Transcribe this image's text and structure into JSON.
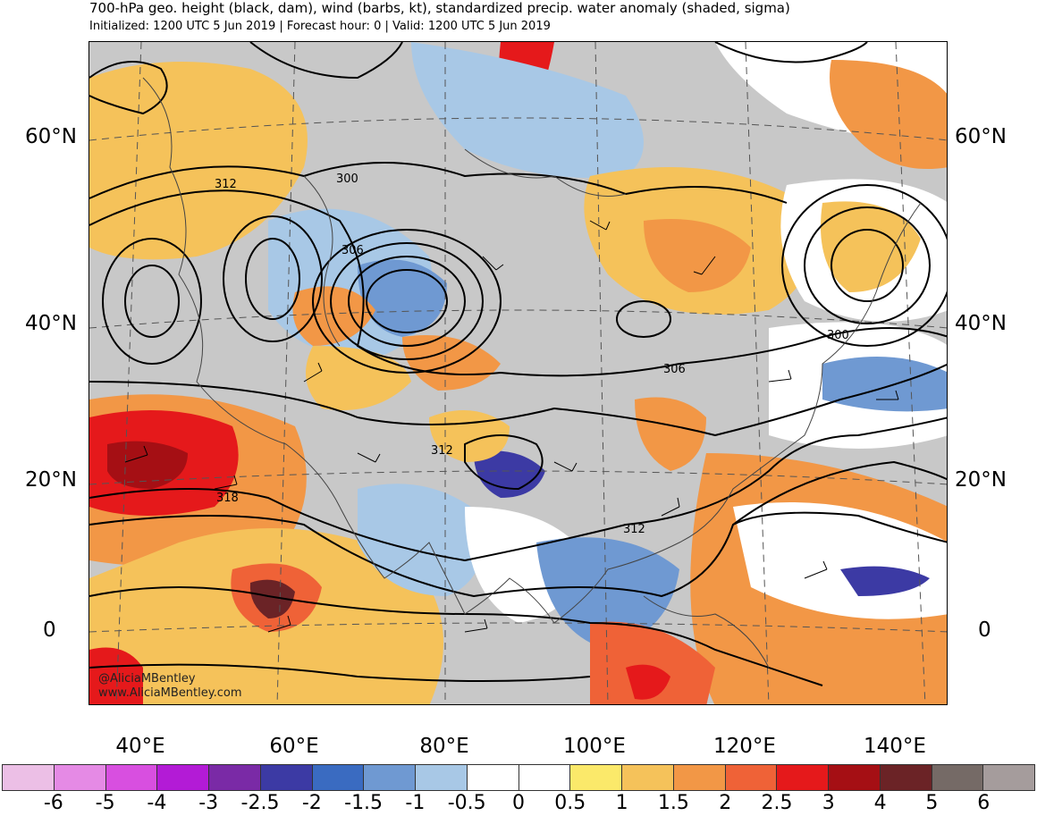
{
  "title": "700-hPa geo. height (black, dam), wind (barbs, kt), standardized precip. water anomaly (shaded, sigma)",
  "subtitle": "Initialized: 1200 UTC 5 Jun 2019 | Forecast hour: 0 | Valid: 1200 UTC 5 Jun 2019",
  "map": {
    "lat_labels": [
      "60°N",
      "40°N",
      "20°N",
      "0"
    ],
    "lon_labels": [
      "40°E",
      "60°E",
      "80°E",
      "100°E",
      "120°E",
      "140°E"
    ],
    "contour_labels": [
      "312",
      "300",
      "306",
      "300",
      "306",
      "312",
      "318",
      "312"
    ],
    "credit_handle": "@AliciaMBentley",
    "credit_url": "www.AliciaMBentley.com"
  },
  "colorbar": {
    "colors": [
      "#ecbfe6",
      "#e58ae5",
      "#d84fe0",
      "#b31bd6",
      "#7a2aa6",
      "#3c3aa4",
      "#3a6bc1",
      "#6f99d2",
      "#a8c8e6",
      "#ffffff",
      "#ffffff",
      "#fbe96a",
      "#f5c25a",
      "#f29746",
      "#ef6237",
      "#e5191b",
      "#a50f14",
      "#6b2326",
      "#756a66",
      "#a59c9c"
    ],
    "tick_labels": [
      "-6",
      "-5",
      "-4",
      "-3",
      "-2.5",
      "-2",
      "-1.5",
      "-1",
      "-0.5",
      "0",
      "0.5",
      "1",
      "1.5",
      "2",
      "2.5",
      "3",
      "4",
      "5",
      "6"
    ]
  }
}
